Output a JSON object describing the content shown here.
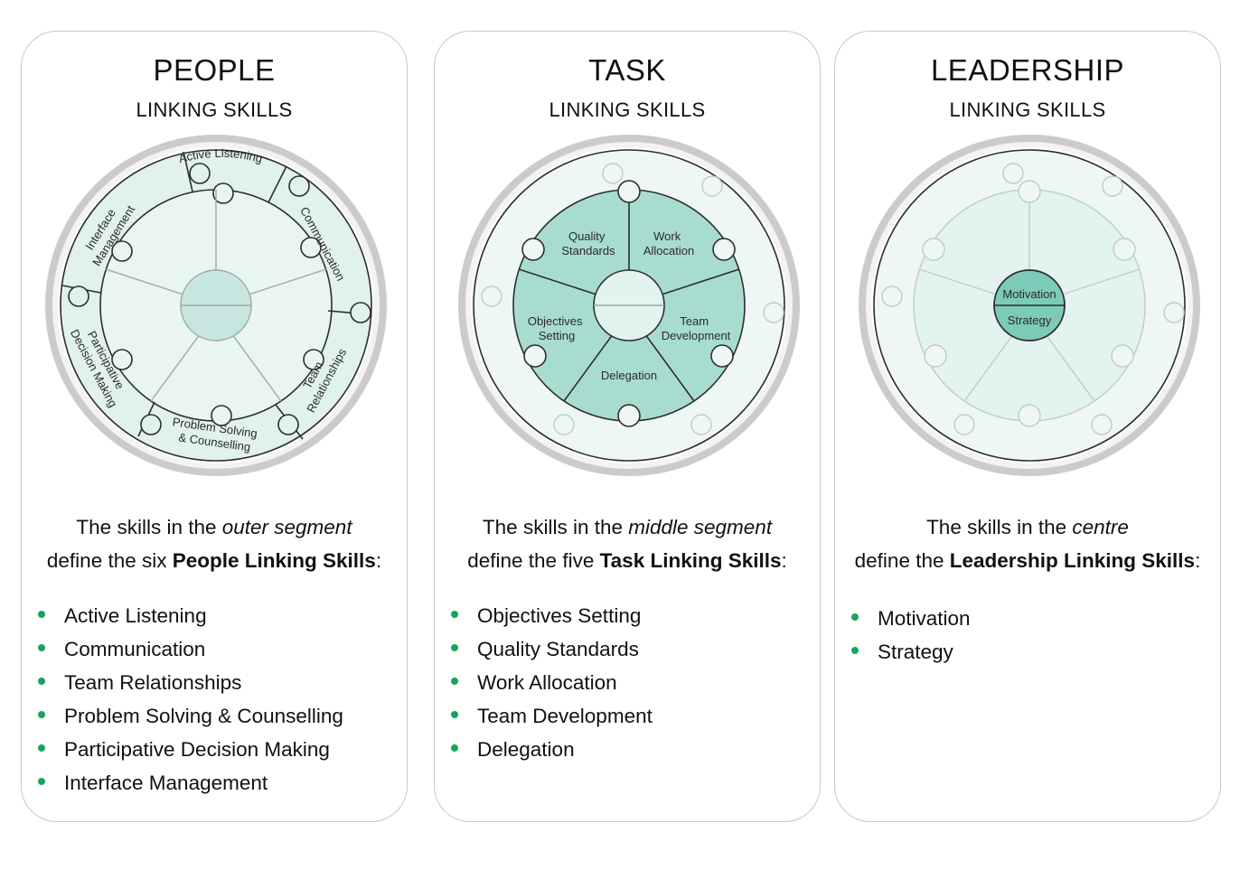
{
  "cards": [
    {
      "title": "PEOPLE",
      "subtitle": "LINKING SKILLS",
      "desc_pre1": "The skills in the ",
      "desc_em": "outer segment",
      "desc_pre2": "define the six ",
      "desc_strong": "People Linking Skills",
      "desc_post": ":",
      "skills": [
        "Active Listening",
        "Communication",
        "Team Relationships",
        "Problem Solving & Counselling",
        "Participative Decision Making",
        "Interface Management"
      ],
      "wheel_labels": {
        "active_listening": "Active Listening",
        "communication": "Communication",
        "team_relationships_1": "Team",
        "team_relationships_2": "Relationships",
        "problem_solving_1": "Problem Solving",
        "problem_solving_2": "& Counselling",
        "participative_1": "Participative",
        "participative_2": "Decision Making",
        "interface_1": "Interface",
        "interface_2": "Management"
      }
    },
    {
      "title": "TASK",
      "subtitle": "LINKING SKILLS",
      "desc_pre1": "The skills in the ",
      "desc_em": "middle segment",
      "desc_pre2": "define the five ",
      "desc_strong": "Task Linking Skills",
      "desc_post": ":",
      "skills": [
        "Objectives Setting",
        "Quality Standards",
        "Work Allocation",
        "Team Development",
        "Delegation"
      ],
      "wheel_labels": {
        "quality_1": "Quality",
        "quality_2": "Standards",
        "work_1": "Work",
        "work_2": "Allocation",
        "team_1": "Team",
        "team_2": "Development",
        "delegation": "Delegation",
        "objectives_1": "Objectives",
        "objectives_2": "Setting"
      }
    },
    {
      "title": "LEADERSHIP",
      "subtitle": "LINKING SKILLS",
      "desc_pre1": "The skills in the ",
      "desc_em": "centre",
      "desc_pre2": "define the ",
      "desc_strong": "Leadership Linking Skills",
      "desc_post": ":",
      "skills": [
        "Motivation",
        "Strategy"
      ],
      "wheel_labels": {
        "motivation": "Motivation",
        "strategy": "Strategy"
      }
    }
  ],
  "colors": {
    "bullet": "#1aa35e",
    "highlight": "#a8dcd2",
    "light": "#e3f3ef",
    "pale": "#f0f8f5",
    "ring": "#c9c9cb",
    "line": "#2d2d2d"
  }
}
